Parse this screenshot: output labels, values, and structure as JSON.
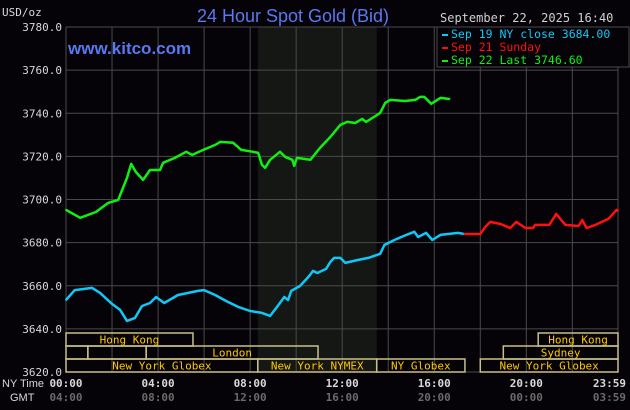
{
  "chart_data": {
    "type": "line",
    "title": "24 Hour Spot Gold (Bid)",
    "watermark": "www.kitco.com",
    "ylabel": "USD/oz",
    "timestamp": "September 22, 2025 16:40",
    "ylim": [
      3620,
      3780
    ],
    "y_ticks": [
      "3620.0",
      "3640.0",
      "3660.0",
      "3680.0",
      "3700.0",
      "3720.0",
      "3740.0",
      "3760.0",
      "3780.0"
    ],
    "x_axis_labels": {
      "ny": "NY Time",
      "gmt": "GMT"
    },
    "x_ticks_ny": [
      "00:00",
      "04:00",
      "08:00",
      "12:00",
      "16:00",
      "20:00",
      "23:59"
    ],
    "x_ticks_gmt": [
      "04:00",
      "08:00",
      "12:00",
      "16:00",
      "20:00",
      "00:00",
      "03:59"
    ],
    "grid": true,
    "legend_position": "top-right",
    "shaded_session": {
      "start": "08:20",
      "end": "13:30"
    },
    "colors": {
      "background": "#050308",
      "grid": "#4a4a4a",
      "title": "#5a78f0",
      "session": "#c8c088",
      "session_text": "#ffc800",
      "shade": "#151714",
      "axis_text": "#d8d8d8",
      "gmt_text": "#6a6a6a"
    },
    "series": [
      {
        "name": "Sep 19 NY close 3684.00",
        "color": "#10c8f8",
        "points": [
          [
            "00:00",
            3653.4
          ],
          [
            "00:23",
            3658.0
          ],
          [
            "01:08",
            3659.0
          ],
          [
            "01:29",
            3656.7
          ],
          [
            "02:00",
            3651.6
          ],
          [
            "02:21",
            3648.8
          ],
          [
            "02:39",
            3643.7
          ],
          [
            "03:00",
            3645.1
          ],
          [
            "03:18",
            3650.6
          ],
          [
            "03:39",
            3652.0
          ],
          [
            "03:55",
            3654.8
          ],
          [
            "04:16",
            3652.0
          ],
          [
            "04:52",
            3655.7
          ],
          [
            "05:44",
            3657.6
          ],
          [
            "06:00",
            3658.0
          ],
          [
            "06:29",
            3655.7
          ],
          [
            "06:58",
            3652.9
          ],
          [
            "07:29",
            3650.2
          ],
          [
            "08:00",
            3648.3
          ],
          [
            "08:31",
            3647.4
          ],
          [
            "08:52",
            3646.0
          ],
          [
            "09:08",
            3649.7
          ],
          [
            "09:29",
            3654.8
          ],
          [
            "09:39",
            3653.4
          ],
          [
            "09:47",
            3657.6
          ],
          [
            "10:10",
            3659.9
          ],
          [
            "10:34",
            3664.5
          ],
          [
            "10:44",
            3666.9
          ],
          [
            "10:55",
            3665.9
          ],
          [
            "11:18",
            3667.8
          ],
          [
            "11:29",
            3671.0
          ],
          [
            "11:39",
            3672.9
          ],
          [
            "11:55",
            3672.9
          ],
          [
            "12:08",
            3670.6
          ],
          [
            "12:42",
            3672.0
          ],
          [
            "13:08",
            3672.9
          ],
          [
            "13:39",
            3674.8
          ],
          [
            "13:50",
            3678.9
          ],
          [
            "14:16",
            3681.2
          ],
          [
            "14:47",
            3683.6
          ],
          [
            "15:08",
            3685.0
          ],
          [
            "15:18",
            3682.6
          ],
          [
            "15:39",
            3684.5
          ],
          [
            "15:55",
            3681.2
          ],
          [
            "16:16",
            3683.6
          ],
          [
            "17:02",
            3684.5
          ],
          [
            "17:18",
            3684.0
          ]
        ]
      },
      {
        "name": "Sep 21 Sunday",
        "color": "#ff1010",
        "points": [
          [
            "17:18",
            3684.0
          ],
          [
            "18:00",
            3684.0
          ],
          [
            "18:13",
            3687.3
          ],
          [
            "18:26",
            3689.6
          ],
          [
            "18:52",
            3688.7
          ],
          [
            "19:18",
            3686.8
          ],
          [
            "19:34",
            3689.6
          ],
          [
            "19:58",
            3686.8
          ],
          [
            "20:18",
            3686.8
          ],
          [
            "20:23",
            3688.2
          ],
          [
            "21:00",
            3688.2
          ],
          [
            "21:18",
            3693.3
          ],
          [
            "21:42",
            3688.2
          ],
          [
            "22:16",
            3687.7
          ],
          [
            "22:26",
            3690.5
          ],
          [
            "22:37",
            3686.8
          ],
          [
            "23:00",
            3688.2
          ],
          [
            "23:34",
            3691.0
          ],
          [
            "23:55",
            3695.2
          ],
          [
            "23:59",
            3694.7
          ]
        ]
      },
      {
        "name": "Sep 22 Last 3746.60",
        "color": "#10f010",
        "points": [
          [
            "00:00",
            3695.2
          ],
          [
            "00:37",
            3691.5
          ],
          [
            "01:18",
            3694.2
          ],
          [
            "01:50",
            3698.4
          ],
          [
            "02:16",
            3699.8
          ],
          [
            "02:39",
            3710.0
          ],
          [
            "02:50",
            3716.5
          ],
          [
            "03:02",
            3712.8
          ],
          [
            "03:21",
            3709.1
          ],
          [
            "03:39",
            3713.7
          ],
          [
            "04:05",
            3713.7
          ],
          [
            "04:13",
            3717.0
          ],
          [
            "04:44",
            3719.3
          ],
          [
            "05:13",
            3722.1
          ],
          [
            "05:29",
            3720.7
          ],
          [
            "05:58",
            3723.0
          ],
          [
            "06:29",
            3725.3
          ],
          [
            "06:42",
            3726.7
          ],
          [
            "07:16",
            3726.3
          ],
          [
            "07:37",
            3723.0
          ],
          [
            "08:08",
            3722.1
          ],
          [
            "08:21",
            3721.6
          ],
          [
            "08:31",
            3716.0
          ],
          [
            "08:39",
            3714.7
          ],
          [
            "08:52",
            3718.4
          ],
          [
            "09:18",
            3722.1
          ],
          [
            "09:31",
            3719.8
          ],
          [
            "09:50",
            3718.4
          ],
          [
            "09:55",
            3715.6
          ],
          [
            "10:02",
            3719.3
          ],
          [
            "10:37",
            3718.4
          ],
          [
            "11:02",
            3723.9
          ],
          [
            "11:29",
            3729.0
          ],
          [
            "11:55",
            3734.6
          ],
          [
            "12:13",
            3736.0
          ],
          [
            "12:34",
            3735.5
          ],
          [
            "12:52",
            3737.4
          ],
          [
            "13:02",
            3736.0
          ],
          [
            "13:31",
            3739.2
          ],
          [
            "13:39",
            3740.2
          ],
          [
            "13:52",
            3744.8
          ],
          [
            "14:05",
            3746.2
          ],
          [
            "14:44",
            3745.7
          ],
          [
            "15:10",
            3746.2
          ],
          [
            "15:23",
            3747.6
          ],
          [
            "15:34",
            3747.6
          ],
          [
            "15:52",
            3744.4
          ],
          [
            "16:16",
            3747.1
          ],
          [
            "16:40",
            3746.6
          ]
        ]
      }
    ],
    "sessions": [
      {
        "row": 0,
        "label": "Hong Kong",
        "start": "00:00",
        "end": "05:31"
      },
      {
        "row": 0,
        "label": "Hong Kong",
        "start": "20:31",
        "end": "23:59"
      },
      {
        "row": 1,
        "label": "",
        "start": "00:00",
        "end": "00:57"
      },
      {
        "row": 1,
        "label": "",
        "start": "00:57",
        "end": "03:29"
      },
      {
        "row": 1,
        "label": "London",
        "start": "03:29",
        "end": "10:57"
      },
      {
        "row": 1,
        "label": "Sydney",
        "start": "19:00",
        "end": "23:59"
      },
      {
        "row": 2,
        "label": "New York Globex",
        "start": "00:00",
        "end": "08:20"
      },
      {
        "row": 2,
        "label": "New York NYMEX",
        "start": "08:20",
        "end": "13:30"
      },
      {
        "row": 2,
        "label": "NY Globex",
        "start": "13:30",
        "end": "17:20"
      },
      {
        "row": 2,
        "label": "New York Globex",
        "start": "18:00",
        "end": "23:59"
      }
    ]
  }
}
